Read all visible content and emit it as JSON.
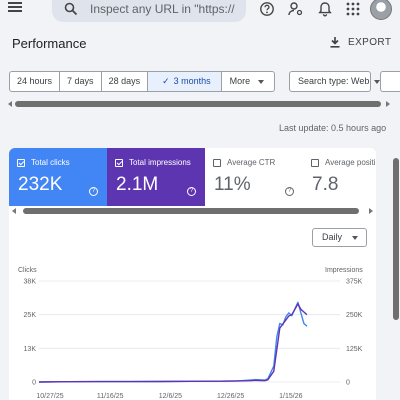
{
  "topbar": {
    "search_placeholder": "Inspect any URL in \"https://",
    "icons": [
      "menu-icon",
      "search-icon",
      "help-icon",
      "manage-accounts-icon",
      "notifications-icon",
      "apps-icon"
    ],
    "avatar_text": "avatar"
  },
  "page": {
    "title": "Performance",
    "export_label": "EXPORT"
  },
  "filters": {
    "ranges": [
      {
        "label": "24 hours",
        "active": false
      },
      {
        "label": "7 days",
        "active": false
      },
      {
        "label": "28 days",
        "active": false
      },
      {
        "label": "3 months",
        "active": true
      },
      {
        "label": "More",
        "active": false
      }
    ],
    "search_type": "Search type: Web"
  },
  "last_update": "Last update: 0.5 hours ago",
  "metrics": [
    {
      "label": "Total clicks",
      "value": "232K",
      "selected": true,
      "color": "#4285f4"
    },
    {
      "label": "Total impressions",
      "value": "2.1M",
      "selected": true,
      "color": "#5e35b1"
    },
    {
      "label": "Average CTR",
      "value": "11%",
      "selected": false
    },
    {
      "label": "Average positi",
      "value": "7.8",
      "selected": false
    }
  ],
  "granularity": "Daily",
  "chart_data": {
    "type": "line",
    "left_axis_label": "Clicks",
    "right_axis_label": "Impressions",
    "left_ticks": [
      "38K",
      "25K",
      "13K",
      "0"
    ],
    "right_ticks": [
      "375K",
      "250K",
      "125K",
      "0"
    ],
    "x_ticks": [
      "10/27/25",
      "11/16/25",
      "12/6/25",
      "12/26/25",
      "1/15/26"
    ],
    "x_range_days": [
      0,
      100
    ],
    "left_ylim": [
      0,
      38000
    ],
    "right_ylim": [
      0,
      375000
    ],
    "series": [
      {
        "name": "Total clicks",
        "color": "#4285f4",
        "axis": "left",
        "points": [
          [
            0,
            0
          ],
          [
            10,
            100
          ],
          [
            20,
            150
          ],
          [
            30,
            150
          ],
          [
            40,
            200
          ],
          [
            50,
            250
          ],
          [
            60,
            300
          ],
          [
            66,
            400
          ],
          [
            70,
            700
          ],
          [
            72,
            900
          ],
          [
            75,
            700
          ],
          [
            76,
            1200
          ],
          [
            78,
            6000
          ],
          [
            79,
            17000
          ],
          [
            80,
            22000
          ],
          [
            81,
            21500
          ],
          [
            82,
            24500
          ],
          [
            83,
            26000
          ],
          [
            84,
            25000
          ],
          [
            85,
            27500
          ],
          [
            86,
            30000
          ],
          [
            87,
            26000
          ],
          [
            88,
            22000
          ],
          [
            89,
            21000
          ]
        ]
      },
      {
        "name": "Total impressions",
        "color": "#5e35b1",
        "axis": "right",
        "points": [
          [
            0,
            0
          ],
          [
            10,
            1000
          ],
          [
            20,
            1500
          ],
          [
            30,
            1500
          ],
          [
            40,
            2000
          ],
          [
            50,
            2500
          ],
          [
            60,
            3000
          ],
          [
            66,
            4000
          ],
          [
            70,
            5000
          ],
          [
            72,
            6000
          ],
          [
            75,
            5000
          ],
          [
            76,
            8000
          ],
          [
            78,
            40000
          ],
          [
            79,
            120000
          ],
          [
            80,
            200000
          ],
          [
            81,
            215000
          ],
          [
            82,
            230000
          ],
          [
            83,
            245000
          ],
          [
            84,
            250000
          ],
          [
            85,
            270000
          ],
          [
            86,
            290000
          ],
          [
            87,
            270000
          ],
          [
            88,
            260000
          ],
          [
            89,
            250000
          ]
        ]
      }
    ]
  }
}
